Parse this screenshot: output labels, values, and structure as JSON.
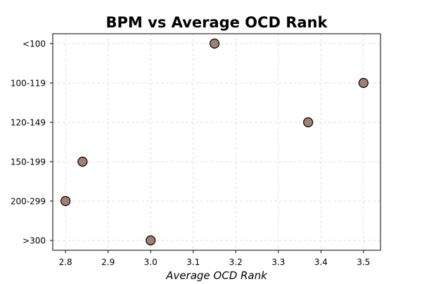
{
  "chart_data": {
    "type": "scatter",
    "title": "BPM vs Average OCD Rank",
    "xlabel": "Average OCD Rank",
    "ylabel": "",
    "x_ticks": [
      "2.8",
      "2.9",
      "3.0",
      "3.1",
      "3.2",
      "3.3",
      "3.4",
      "3.5"
    ],
    "y_categories": [
      ">300",
      "200-299",
      "150-199",
      "120-149",
      "100-119",
      "<100"
    ],
    "xlim": [
      2.77,
      3.54
    ],
    "grid": true,
    "points": [
      {
        "x": 3.15,
        "y": "<100"
      },
      {
        "x": 3.5,
        "y": "100-119"
      },
      {
        "x": 3.37,
        "y": "120-149"
      },
      {
        "x": 2.84,
        "y": "150-199"
      },
      {
        "x": 2.8,
        "y": "200-299"
      },
      {
        "x": 3.0,
        "y": ">300"
      }
    ],
    "marker_color": "#a08070",
    "marker_edge_color": "#000000"
  }
}
